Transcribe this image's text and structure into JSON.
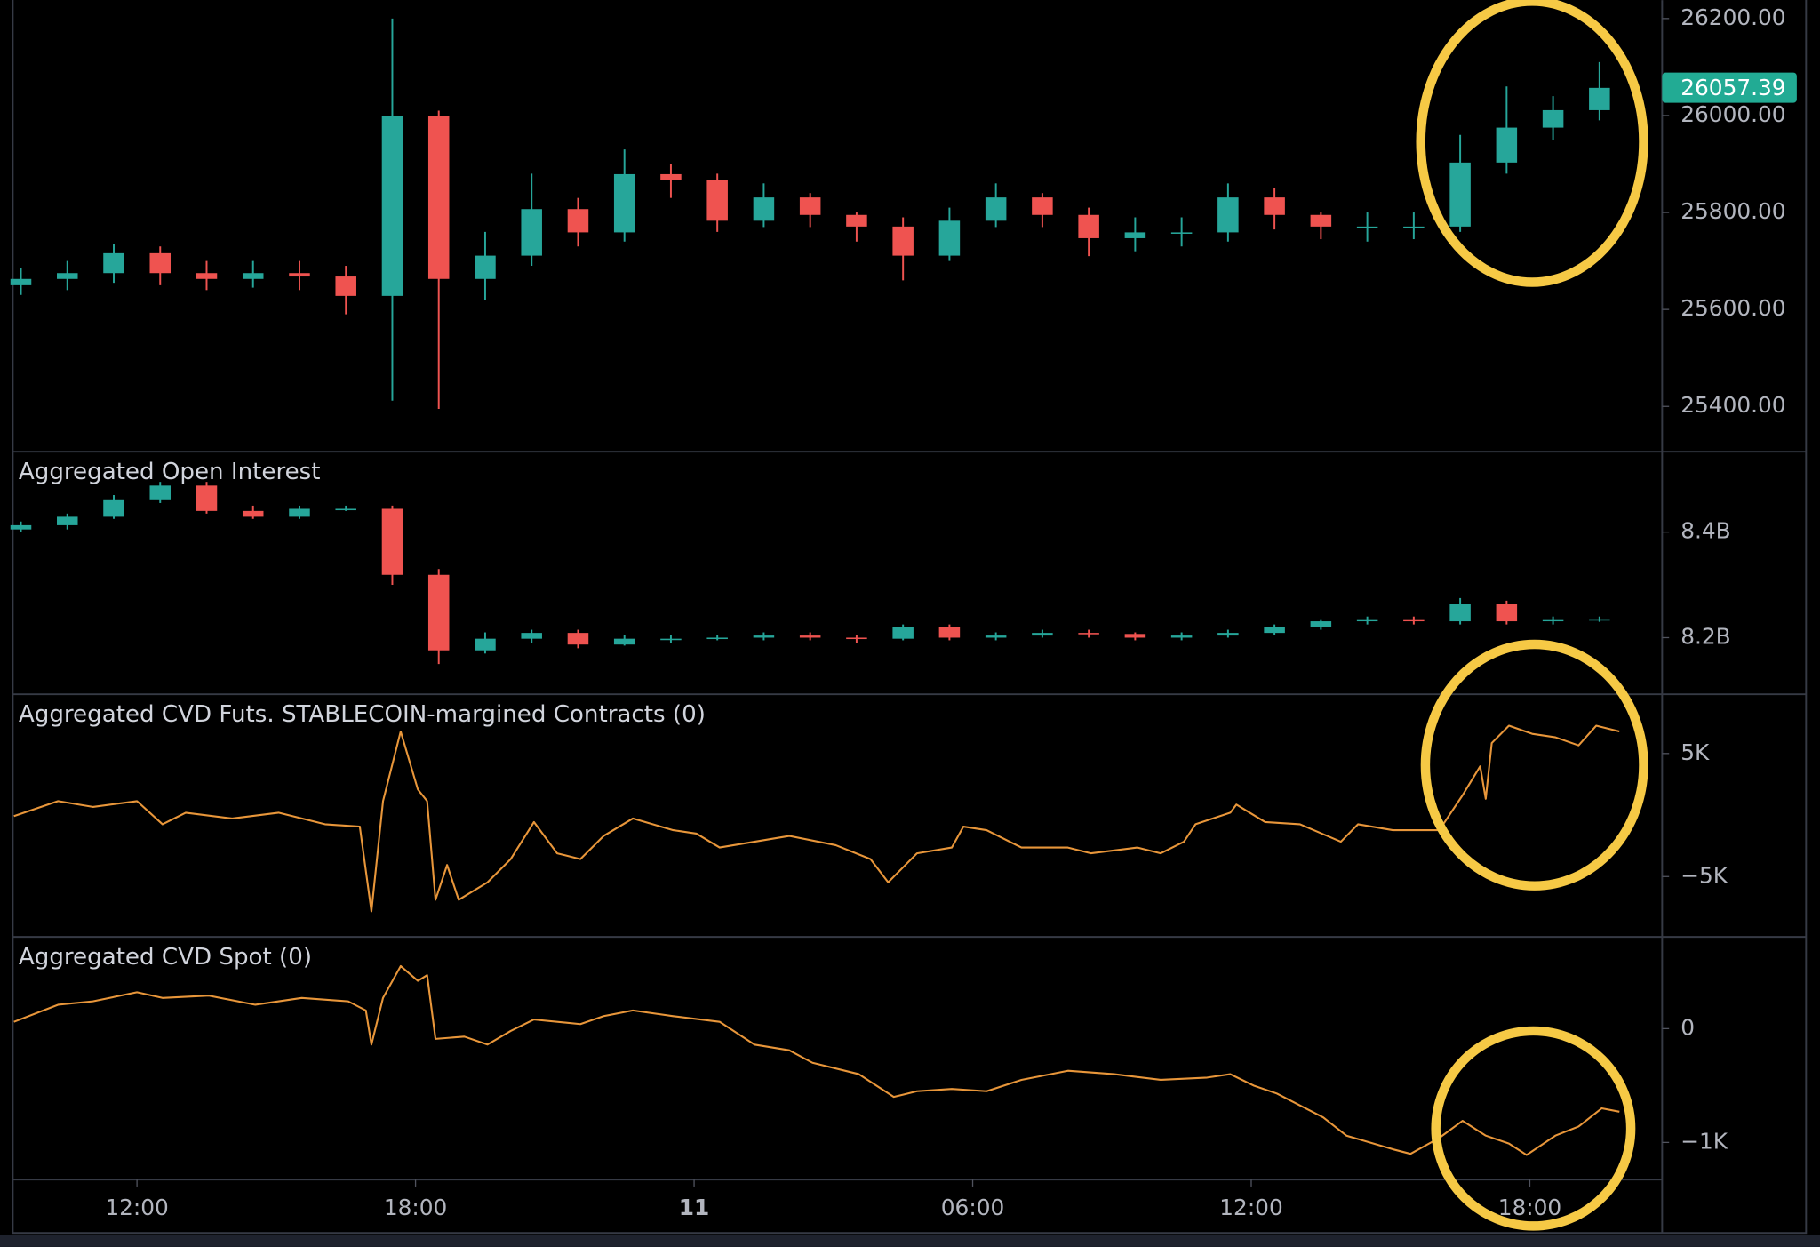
{
  "chart_data": [
    {
      "type": "candlestick",
      "x": [
        9.5,
        10.5,
        11.5,
        12.5,
        13.5,
        14.5,
        15.5,
        16.5,
        17.5,
        18.5,
        19.5,
        20.5,
        21.5,
        22.5,
        23.5,
        24.5,
        25.5,
        26.5,
        27.5,
        28.5,
        29.5,
        30.5,
        31.5,
        32.5,
        33.5,
        34.5,
        35.5,
        36.5,
        37.5,
        38.5,
        39.5,
        40.5,
        41.5,
        42.5,
        43.5
      ],
      "open": [
        25650,
        25663,
        25675,
        25716,
        25675,
        25663,
        25675,
        25668,
        25628,
        25999,
        25663,
        25711,
        25807,
        25759,
        25879,
        25867,
        25783,
        25831,
        25795,
        25771,
        25711,
        25783,
        25831,
        25795,
        25747,
        25759,
        25759,
        25831,
        25795,
        25771,
        25771,
        25771,
        25903,
        25975,
        26011
      ],
      "high": [
        25685,
        25700,
        25735,
        25730,
        25700,
        25700,
        25700,
        25690,
        26200,
        26010,
        25760,
        25880,
        25830,
        25930,
        25900,
        25880,
        25860,
        25840,
        25800,
        25790,
        25810,
        25860,
        25840,
        25810,
        25790,
        25790,
        25860,
        25850,
        25800,
        25800,
        25800,
        25960,
        26060,
        26040,
        26110
      ],
      "low": [
        25630,
        25640,
        25655,
        25650,
        25640,
        25645,
        25640,
        25590,
        25412,
        25395,
        25620,
        25690,
        25730,
        25740,
        25830,
        25760,
        25770,
        25770,
        25740,
        25660,
        25700,
        25770,
        25770,
        25710,
        25720,
        25730,
        25740,
        25765,
        25745,
        25740,
        25745,
        25760,
        25880,
        25950,
        25990
      ],
      "close": [
        25663,
        25675,
        25716,
        25675,
        25663,
        25675,
        25668,
        25628,
        25999,
        25663,
        25711,
        25807,
        25759,
        25879,
        25867,
        25783,
        25831,
        25795,
        25771,
        25711,
        25783,
        25831,
        25795,
        25747,
        25759,
        25759,
        25831,
        25795,
        25771,
        25771,
        25771,
        25903,
        25975,
        26011,
        26057
      ],
      "up_color": "#26a69a",
      "down_color": "#ef5350",
      "last_price": 26057.39,
      "last_price_color": "#22ab94",
      "xlim": [
        9.35,
        44.85
      ],
      "ylim": [
        25309,
        26238
      ],
      "yticks": [
        {
          "value": 25400,
          "label": "25400.00"
        },
        {
          "value": 25600,
          "label": "25600.00"
        },
        {
          "value": 25800,
          "label": "25800.00"
        },
        {
          "value": 26000,
          "label": "26000.00"
        },
        {
          "value": 26200,
          "label": "26200.00"
        }
      ]
    },
    {
      "type": "candlestick",
      "title": "Aggregated Open Interest",
      "x": [
        9.5,
        10.5,
        11.5,
        12.5,
        13.5,
        14.5,
        15.5,
        16.5,
        17.5,
        18.5,
        19.5,
        20.5,
        21.5,
        22.5,
        23.5,
        24.5,
        25.5,
        26.5,
        27.5,
        28.5,
        29.5,
        30.5,
        31.5,
        32.5,
        33.5,
        34.5,
        35.5,
        36.5,
        37.5,
        38.5,
        39.5,
        40.5,
        41.5,
        42.5,
        43.5
      ],
      "open": [
        8.405,
        8.413,
        8.429,
        8.462,
        8.488,
        8.44,
        8.429,
        8.444,
        8.444,
        8.319,
        8.176,
        8.198,
        8.209,
        8.187,
        8.198,
        8.198,
        8.2,
        8.204,
        8.2,
        8.198,
        8.22,
        8.2,
        8.204,
        8.209,
        8.207,
        8.2,
        8.204,
        8.209,
        8.22,
        8.231,
        8.235,
        8.231,
        8.264,
        8.231,
        8.235
      ],
      "high": [
        8.42,
        8.435,
        8.47,
        8.495,
        8.495,
        8.45,
        8.45,
        8.45,
        8.45,
        8.33,
        8.21,
        8.215,
        8.215,
        8.205,
        8.205,
        8.205,
        8.21,
        8.21,
        8.205,
        8.225,
        8.225,
        8.21,
        8.215,
        8.215,
        8.21,
        8.21,
        8.215,
        8.225,
        8.235,
        8.24,
        8.24,
        8.275,
        8.27,
        8.24,
        8.24
      ],
      "low": [
        8.4,
        8.405,
        8.425,
        8.455,
        8.435,
        8.425,
        8.425,
        8.44,
        8.3,
        8.15,
        8.17,
        8.19,
        8.18,
        8.185,
        8.19,
        8.195,
        8.195,
        8.195,
        8.19,
        8.195,
        8.195,
        8.195,
        8.2,
        8.2,
        8.195,
        8.195,
        8.2,
        8.205,
        8.215,
        8.225,
        8.225,
        8.225,
        8.225,
        8.225,
        8.23
      ],
      "close": [
        8.413,
        8.429,
        8.462,
        8.488,
        8.44,
        8.429,
        8.444,
        8.444,
        8.319,
        8.176,
        8.198,
        8.209,
        8.187,
        8.198,
        8.198,
        8.2,
        8.204,
        8.2,
        8.198,
        8.22,
        8.2,
        8.204,
        8.209,
        8.207,
        8.2,
        8.204,
        8.209,
        8.22,
        8.231,
        8.235,
        8.231,
        8.264,
        8.231,
        8.235,
        8.235
      ],
      "up_color": "#26a69a",
      "down_color": "#ef5350",
      "xlim": [
        9.35,
        44.85
      ],
      "ylim": [
        8.095,
        8.55
      ],
      "yticks": [
        {
          "value": 8.2,
          "label": "8.2B"
        },
        {
          "value": 8.4,
          "label": "8.4B"
        }
      ]
    },
    {
      "type": "line",
      "title": "Aggregated CVD Futs. STABLECOIN-margined Contracts (0)",
      "x": [
        9.35,
        10.3,
        11.05,
        12,
        12.55,
        13.05,
        14.05,
        15.05,
        16.05,
        16.8,
        17.05,
        17.3,
        17.68,
        18.05,
        18.25,
        18.43,
        18.68,
        18.93,
        19.55,
        20.05,
        20.55,
        21.05,
        21.55,
        22.05,
        22.68,
        23.55,
        24.05,
        24.55,
        25.3,
        26.05,
        27.05,
        27.8,
        28.18,
        28.8,
        29.55,
        29.8,
        30.3,
        31.05,
        32.05,
        32.55,
        33.55,
        34.05,
        34.55,
        34.8,
        35.55,
        35.68,
        36.3,
        37.05,
        37.93,
        38.3,
        39.05,
        40.05,
        40.55,
        40.93,
        41.05,
        41.18,
        41.55,
        42.05,
        42.55,
        43.05,
        43.43,
        43.93
      ],
      "values": [
        -0.09,
        1.13,
        0.66,
        1.13,
        -0.75,
        0.19,
        -0.28,
        0.19,
        -0.75,
        -0.94,
        -7.83,
        1.13,
        6.79,
        2.08,
        1.13,
        -6.89,
        -4.06,
        -6.89,
        -5.47,
        -3.58,
        -0.57,
        -3.11,
        -3.58,
        -1.7,
        -0.28,
        -1.23,
        -1.51,
        -2.64,
        -2.17,
        -1.7,
        -2.45,
        -3.58,
        -5.47,
        -3.11,
        -2.64,
        -0.94,
        -1.23,
        -2.64,
        -2.64,
        -3.11,
        -2.64,
        -3.11,
        -2.17,
        -0.75,
        0.19,
        0.85,
        -0.57,
        -0.75,
        -2.17,
        -0.75,
        -1.23,
        -1.23,
        1.6,
        3.96,
        1.32,
        5.85,
        7.26,
        6.6,
        6.32,
        5.66,
        7.26,
        6.79
      ],
      "color": "#e8963a",
      "xlim": [
        9.35,
        44.85
      ],
      "ylim": [
        -9.81,
        9.72
      ],
      "yticks": [
        {
          "value": -5,
          "label": "−5K"
        },
        {
          "value": 5,
          "label": "5K"
        }
      ]
    },
    {
      "type": "line",
      "title": "Aggregated CVD Spot (0)",
      "x": [
        9.35,
        10.3,
        11.05,
        12,
        12.55,
        13.55,
        14.55,
        15.55,
        16.55,
        16.93,
        17.05,
        17.3,
        17.68,
        18.05,
        18.25,
        18.43,
        19.05,
        19.55,
        20.05,
        20.55,
        21.55,
        22.05,
        22.68,
        23.55,
        24.55,
        25.3,
        26.05,
        26.55,
        27.55,
        28.3,
        28.8,
        29.55,
        30.3,
        31.05,
        32.05,
        33.05,
        34.05,
        35.05,
        35.55,
        36.05,
        36.55,
        37.55,
        38.05,
        39.05,
        39.43,
        40.05,
        40.55,
        41.05,
        41.55,
        41.93,
        42.55,
        43.05,
        43.55,
        43.93
      ],
      "values": [
        0.06,
        0.21,
        0.24,
        0.32,
        0.27,
        0.29,
        0.21,
        0.27,
        0.24,
        0.16,
        -0.14,
        0.27,
        0.55,
        0.42,
        0.47,
        -0.09,
        -0.07,
        -0.14,
        -0.02,
        0.08,
        0.04,
        0.11,
        0.16,
        0.11,
        0.06,
        -0.14,
        -0.19,
        -0.3,
        -0.4,
        -0.6,
        -0.55,
        -0.53,
        -0.55,
        -0.45,
        -0.37,
        -0.4,
        -0.45,
        -0.43,
        -0.4,
        -0.5,
        -0.57,
        -0.78,
        -0.94,
        -1.06,
        -1.1,
        -0.96,
        -0.81,
        -0.94,
        -1.01,
        -1.11,
        -0.94,
        -0.86,
        -0.7,
        -0.73
      ],
      "color": "#e8963a",
      "xlim": [
        9.35,
        44.85
      ],
      "ylim": [
        -1.316,
        0.796
      ],
      "yticks": [
        {
          "value": -1,
          "label": "−1K"
        },
        0
      ],
      "xticks": [
        {
          "value": 12,
          "label": "12:00"
        },
        {
          "value": 18,
          "label": "18:00"
        },
        {
          "value": 24,
          "label": "11"
        },
        {
          "value": 30,
          "label": "06:00"
        },
        {
          "value": 36,
          "label": "12:00"
        },
        {
          "value": 42,
          "label": "18:00"
        }
      ]
    }
  ]
}
